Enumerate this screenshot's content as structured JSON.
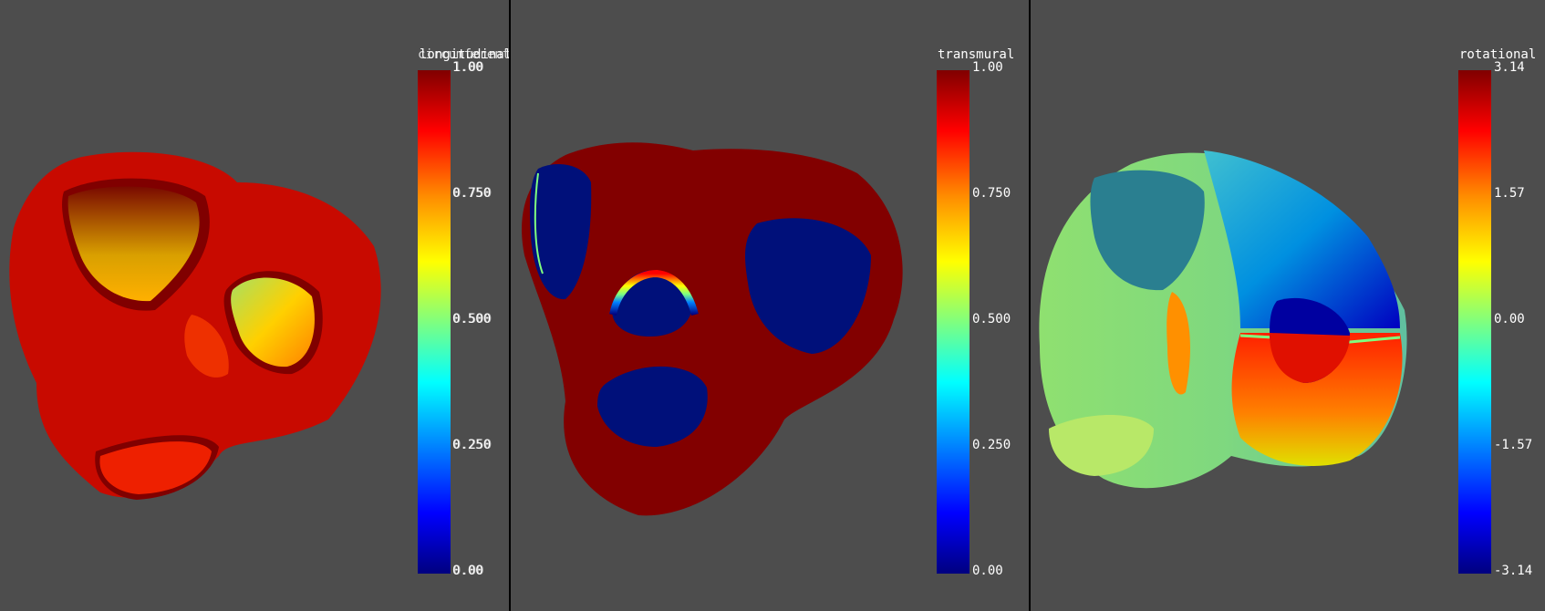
{
  "panels": [
    {
      "colorbar_titles": [
        "longitudinal",
        "circumferential"
      ],
      "tick_labels": [
        "1.00",
        "0.750",
        "0.500",
        "0.250",
        "0.00"
      ],
      "overlay_tick_labels": [
        "1.00",
        "0.750",
        "0.500",
        "0.250",
        "0.00"
      ]
    },
    {
      "colorbar_title": "transmural",
      "tick_labels": [
        "1.00",
        "0.750",
        "0.500",
        "0.250",
        "0.00"
      ]
    },
    {
      "colorbar_title": "rotational",
      "tick_labels": [
        "3.14",
        "1.57",
        "0.00",
        "-1.57",
        "-3.14"
      ]
    }
  ],
  "colormap": [
    "#800000",
    "#ff0000",
    "#ff8c00",
    "#ffff00",
    "#7fff7f",
    "#00ffff",
    "#0080ff",
    "#0000ff",
    "#00007f"
  ],
  "background_color": "#4d4d4d"
}
